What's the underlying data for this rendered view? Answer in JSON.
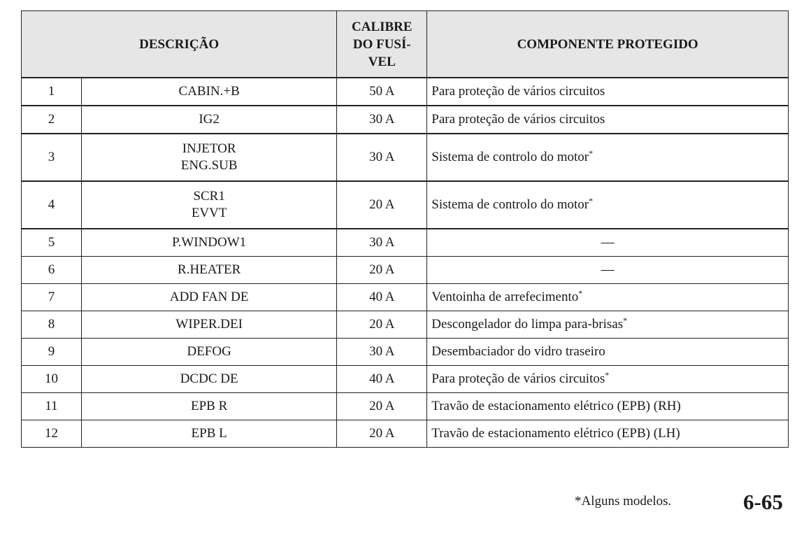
{
  "table": {
    "headers": [
      "DESCRIÇÃO",
      "CALIBRE DO FUSÍ- VEL",
      "COMPONENTE PROTEGIDO"
    ],
    "header_calibre_lines": [
      "CALIBRE",
      "DO FUSÍ-",
      "VEL"
    ],
    "rows": [
      {
        "num": "1",
        "desc": [
          "CABIN.+B"
        ],
        "rating": "50 A",
        "component": "Para proteção de vários circuitos",
        "asterisk": ""
      },
      {
        "num": "2",
        "desc": [
          "IG2"
        ],
        "rating": "30 A",
        "component": "Para proteção de vários circuitos",
        "asterisk": ""
      },
      {
        "num": "3",
        "desc": [
          "INJETOR",
          "ENG.SUB"
        ],
        "rating": "30 A",
        "component": "Sistema de controlo do motor",
        "asterisk": "*"
      },
      {
        "num": "4",
        "desc": [
          "SCR1",
          "EVVT"
        ],
        "rating": "20 A",
        "component": "Sistema de controlo do motor",
        "asterisk": "*"
      },
      {
        "num": "5",
        "desc": [
          "P.WINDOW1"
        ],
        "rating": "30 A",
        "component": "—",
        "asterisk": ""
      },
      {
        "num": "6",
        "desc": [
          "R.HEATER"
        ],
        "rating": "20 A",
        "component": "—",
        "asterisk": ""
      },
      {
        "num": "7",
        "desc": [
          "ADD FAN DE"
        ],
        "rating": "40 A",
        "component": "Ventoinha de arrefecimento",
        "asterisk": "*"
      },
      {
        "num": "8",
        "desc": [
          "WIPER.DEI"
        ],
        "rating": "20 A",
        "component": "Descongelador do limpa para-brisas",
        "asterisk": "*"
      },
      {
        "num": "9",
        "desc": [
          "DEFOG"
        ],
        "rating": "30 A",
        "component": "Desembaciador do vidro traseiro",
        "asterisk": ""
      },
      {
        "num": "10",
        "desc": [
          "DCDC DE"
        ],
        "rating": "40 A",
        "component": "Para proteção de vários circuitos",
        "asterisk": "*"
      },
      {
        "num": "11",
        "desc": [
          "EPB R"
        ],
        "rating": "20 A",
        "component": "Travão de estacionamento elétrico (EPB) (RH)",
        "asterisk": ""
      },
      {
        "num": "12",
        "desc": [
          "EPB L"
        ],
        "rating": "20 A",
        "component": "Travão de estacionamento elétrico (EPB) (LH)",
        "asterisk": ""
      }
    ]
  },
  "footer": {
    "footnote": "*Alguns modelos.",
    "page_number": "6-65"
  }
}
